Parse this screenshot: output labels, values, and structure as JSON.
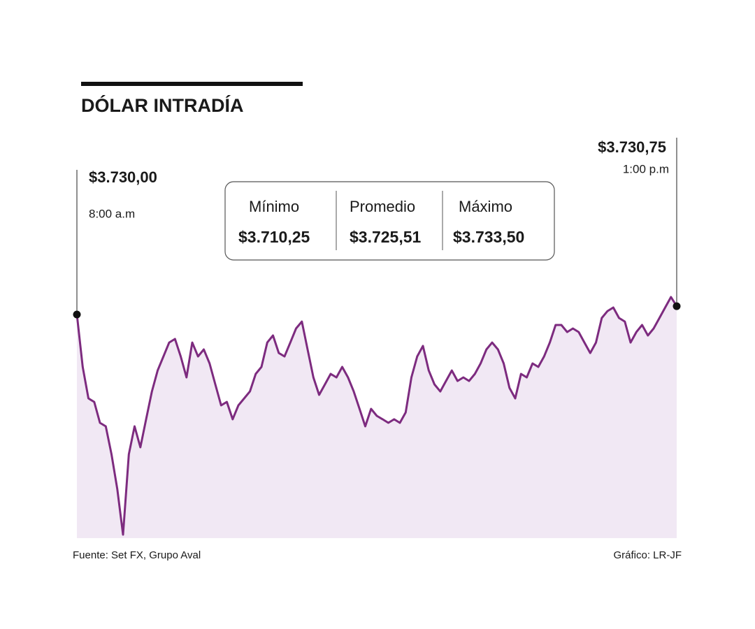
{
  "chart_data": {
    "type": "area",
    "title": "DÓLAR INTRADÍA",
    "line_color": "#7d2b7f",
    "fill_color": "#f1e8f4",
    "values": [
      3730.0,
      3725.3,
      3722.48,
      3722.16,
      3720.28,
      3719.97,
      3717.46,
      3714.33,
      3710.25,
      3717.46,
      3719.97,
      3718.09,
      3720.6,
      3723.1,
      3724.98,
      3726.24,
      3727.49,
      3727.81,
      3726.24,
      3724.36,
      3727.49,
      3726.24,
      3726.87,
      3725.61,
      3723.73,
      3721.85,
      3722.16,
      3720.6,
      3721.85,
      3722.48,
      3723.1,
      3724.67,
      3725.3,
      3727.49,
      3728.12,
      3726.55,
      3726.24,
      3727.49,
      3728.75,
      3729.37,
      3726.87,
      3724.36,
      3722.79,
      3723.73,
      3724.67,
      3724.36,
      3725.3,
      3724.36,
      3723.1,
      3721.54,
      3719.97,
      3721.54,
      3720.91,
      3720.6,
      3720.28,
      3720.6,
      3720.28,
      3721.22,
      3724.36,
      3726.24,
      3727.18,
      3724.98,
      3723.73,
      3723.1,
      3724.04,
      3724.98,
      3724.04,
      3724.36,
      3724.04,
      3724.67,
      3725.61,
      3726.87,
      3727.49,
      3726.87,
      3725.61,
      3723.42,
      3722.48,
      3724.67,
      3724.36,
      3725.61,
      3725.3,
      3726.24,
      3727.49,
      3729.06,
      3729.06,
      3728.43,
      3728.75,
      3728.43,
      3727.49,
      3726.55,
      3727.49,
      3729.69,
      3730.31,
      3730.63,
      3729.69,
      3729.37,
      3727.49,
      3728.43,
      3729.06,
      3728.12,
      3728.75,
      3729.69,
      3730.63,
      3731.57,
      3730.75
    ],
    "endpoints": [
      {
        "label": "$3.730,00",
        "time": "8:00 a.m"
      },
      {
        "label": "$3.730,75",
        "time": "1:00 p.m"
      }
    ],
    "stats": [
      {
        "name": "Mínimo",
        "value": 3710.25,
        "label": "$3.710,25"
      },
      {
        "name": "Promedio",
        "value": 3725.51,
        "label": "$3.725,51"
      },
      {
        "name": "Máximo",
        "value": 3733.5,
        "label": "$3.733,50"
      }
    ],
    "source": "Fuente:  Set FX, Grupo Aval",
    "credit": "Gráfico: LR-JF"
  }
}
